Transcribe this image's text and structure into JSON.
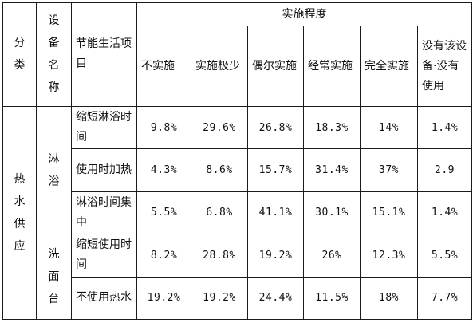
{
  "table": {
    "header": {
      "category": [
        "分",
        "类"
      ],
      "equipment": [
        "设",
        "备",
        "名",
        "称"
      ],
      "item": "节能生活项目",
      "degree": "实施程度",
      "levels": [
        "不实施",
        "实施极少",
        "偶尔实施",
        "经常实施",
        "完全实施",
        "没有该设备·没有使用"
      ]
    },
    "category_label": [
      "热",
      "水",
      "供",
      "应"
    ],
    "groups": [
      {
        "equipment": [
          "淋",
          "浴"
        ],
        "rows": [
          {
            "item": "缩短淋浴时间",
            "values": [
              "9.8%",
              "29.6%",
              "26.8%",
              "18.3%",
              "14%",
              "1.4%"
            ]
          },
          {
            "item": "使用时加热",
            "values": [
              "4.3%",
              "8.6%",
              "15.7%",
              "31.4%",
              "37%",
              "2.9"
            ]
          },
          {
            "item": "淋浴时间集中",
            "values": [
              "5.5%",
              "6.8%",
              "41.1%",
              "30.1%",
              "15.1%",
              "1.4%"
            ]
          }
        ]
      },
      {
        "equipment": [
          "洗",
          "面",
          "台"
        ],
        "rows": [
          {
            "item": "缩短使用时间",
            "values": [
              "8.2%",
              "28.8%",
              "19.2%",
              "26%",
              "12.3%",
              "5.5%"
            ]
          },
          {
            "item": "不使用热水",
            "values": [
              "19.2%",
              "19.2%",
              "24.4%",
              "11.5%",
              "18%",
              "7.7%"
            ]
          }
        ]
      }
    ]
  }
}
